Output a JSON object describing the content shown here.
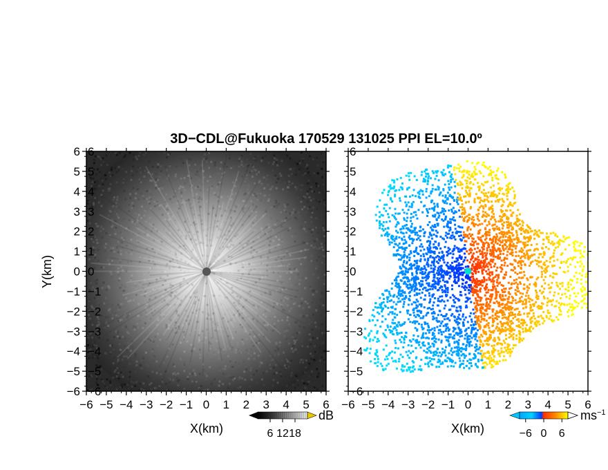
{
  "chart_data": [
    {
      "type": "heatmap",
      "title": "3D−CDL@Fukuoka 170529 131025 PPI EL=10.0º",
      "xlabel": "X(km)",
      "ylabel": "Y(km)",
      "xlim": [
        -6,
        6
      ],
      "ylim": [
        -6,
        6
      ],
      "x_ticks": [
        -6,
        -5,
        -4,
        -3,
        -2,
        -1,
        0,
        1,
        2,
        3,
        4,
        5,
        6
      ],
      "y_ticks": [
        -6,
        -5,
        -4,
        -3,
        -2,
        -1,
        0,
        1,
        2,
        3,
        4,
        5,
        6
      ],
      "x_tick_labels": [
        "−6",
        "−5",
        "−4",
        "−3",
        "−2",
        "−1",
        "0",
        "1",
        "2",
        "3",
        "4",
        "5",
        "6"
      ],
      "y_tick_labels": [
        "6",
        "5",
        "4",
        "3",
        "2",
        "1",
        "0",
        "−1",
        "−2",
        "−3",
        "−4",
        "−5",
        "−6"
      ],
      "grid": false,
      "colorbar": {
        "unit": "dB",
        "ticks": [
          6,
          12,
          18
        ],
        "tick_labels": [
          "6",
          "12",
          "18"
        ],
        "colors": [
          "#000000",
          "#3a3a3a",
          "#7a7a7a",
          "#bdbdbd",
          "#ffffff"
        ],
        "over_color": "#e8c800"
      }
    },
    {
      "type": "heatmap",
      "xlabel": "X(km)",
      "xlim": [
        -6,
        6
      ],
      "ylim": [
        -6,
        6
      ],
      "x_ticks": [
        -6,
        -5,
        -4,
        -3,
        -2,
        -1,
        0,
        1,
        2,
        3,
        4,
        5,
        6
      ],
      "y_ticks": [
        -6,
        -5,
        -4,
        -3,
        -2,
        -1,
        0,
        1,
        2,
        3,
        4,
        5,
        6
      ],
      "x_tick_labels": [
        "−6",
        "−5",
        "−4",
        "−3",
        "−2",
        "−1",
        "0",
        "1",
        "2",
        "3",
        "4",
        "5",
        "6"
      ],
      "y_tick_labels": [
        "6",
        "5",
        "4",
        "3",
        "2",
        "1",
        "0",
        "−1",
        "−2",
        "−3",
        "−4",
        "−5",
        "−6"
      ],
      "grid": false,
      "colorbar": {
        "unit": "ms",
        "unit_superscript": "−1",
        "ticks": [
          -6,
          0,
          6
        ],
        "tick_labels": [
          "−6",
          "0",
          "6"
        ],
        "colors": [
          "#0000c8",
          "#0070ff",
          "#00c8ff",
          "#ff6000",
          "#ff3000",
          "#ffff00"
        ]
      }
    }
  ]
}
